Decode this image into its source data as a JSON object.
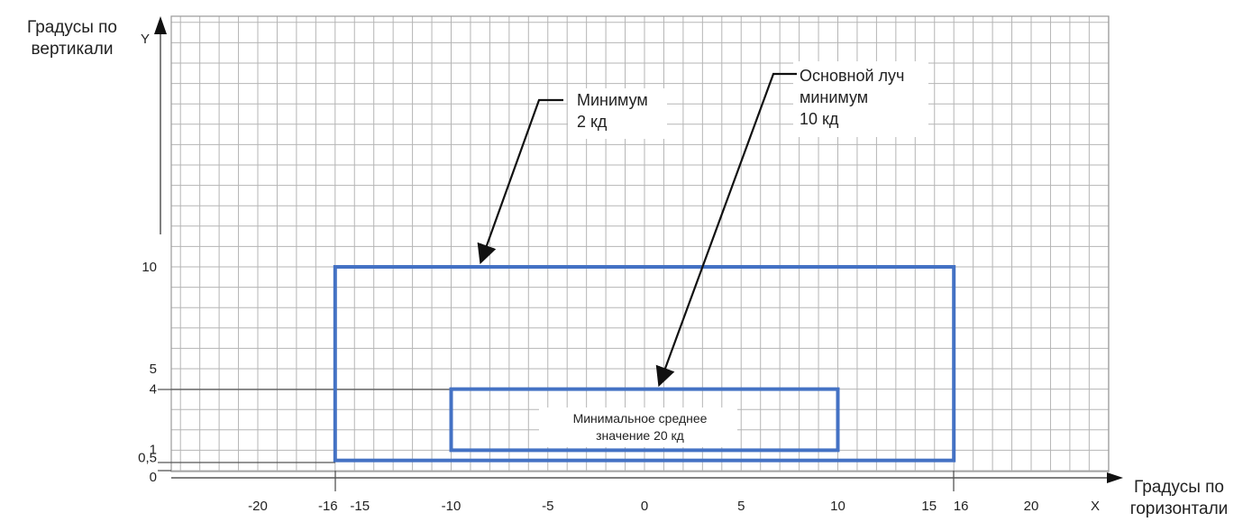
{
  "axes": {
    "y_title_line1": "Градусы по",
    "y_title_line2": "вертикали",
    "y_letter": "Y",
    "x_title_line1": "Градусы по",
    "x_title_line2": "горизонтали",
    "x_letter": "X"
  },
  "x_ticks": [
    {
      "value": -20,
      "label": "-20"
    },
    {
      "value": -16,
      "label": "-16"
    },
    {
      "value": -15,
      "label": "-15"
    },
    {
      "value": -10,
      "label": "-10"
    },
    {
      "value": -5,
      "label": "-5"
    },
    {
      "value": 0,
      "label": "0"
    },
    {
      "value": 5,
      "label": "5"
    },
    {
      "value": 10,
      "label": "10"
    },
    {
      "value": 15,
      "label": "15"
    },
    {
      "value": 16,
      "label": "16"
    },
    {
      "value": 20,
      "label": "20"
    }
  ],
  "y_ticks": [
    {
      "value": 10,
      "label": "10"
    },
    {
      "value": 5,
      "label": "5"
    },
    {
      "value": 4,
      "label": "4"
    },
    {
      "value": 1,
      "label": "1"
    },
    {
      "value": 0.5,
      "label": "0,5"
    },
    {
      "value": 0,
      "label": "0"
    }
  ],
  "regions": [
    {
      "name": "outer-zone",
      "x_min": -16,
      "x_max": 16,
      "y_min": 0.5,
      "y_max": 10
    },
    {
      "name": "inner-zone",
      "x_min": -10,
      "x_max": 10,
      "y_min": 1,
      "y_max": 4
    }
  ],
  "callouts": {
    "outer": {
      "line1": "Минимум",
      "line2": "2 кд"
    },
    "inner": {
      "line1": "Основной луч",
      "line2": "минимум",
      "line3": "10 кд"
    }
  },
  "inner_label": {
    "line1": "Минимальное среднее",
    "line2": "значение 20 кд"
  },
  "colors": {
    "frame": "#4472c4",
    "grid": "#b5b5b5",
    "axis": "#555555",
    "text": "#222222"
  }
}
